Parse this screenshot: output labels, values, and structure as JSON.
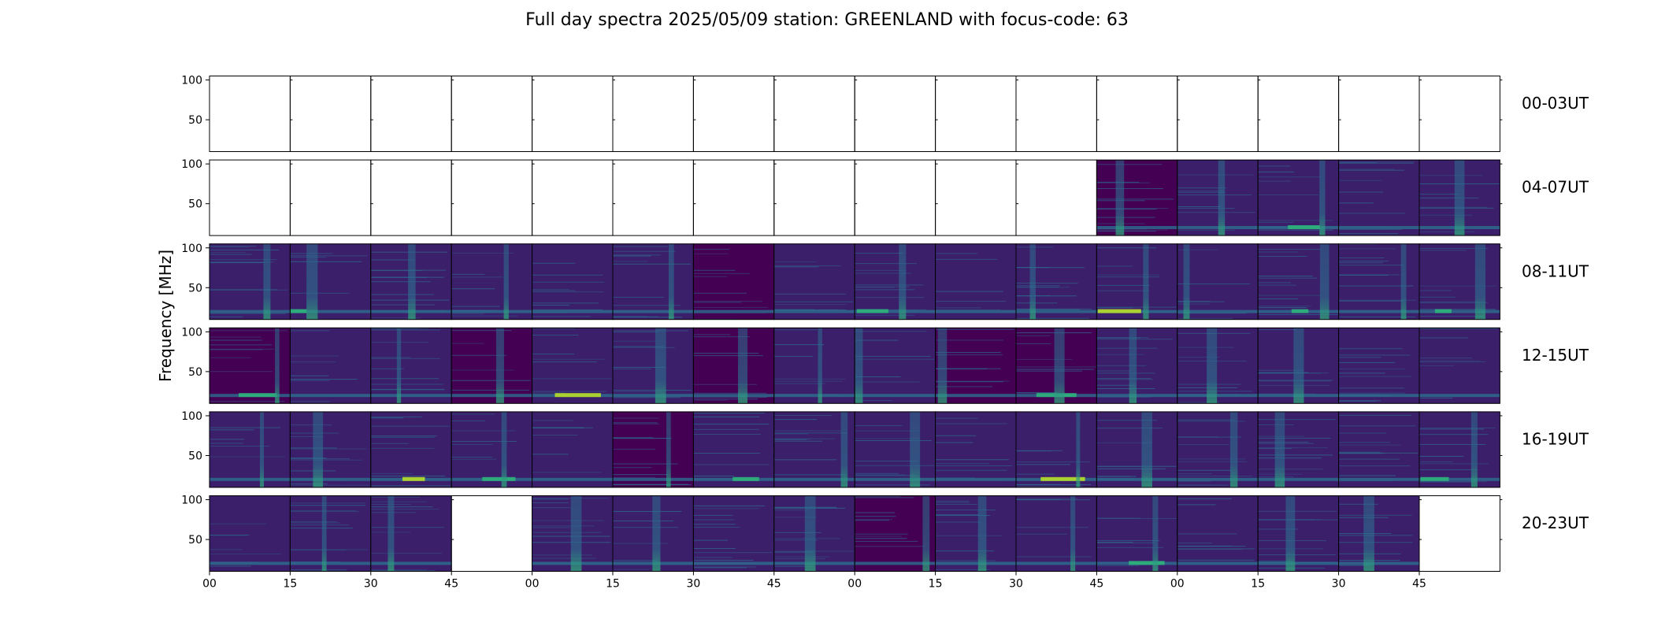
{
  "chart_data": {
    "type": "heatmap",
    "title": "Full day spectra 2025/05/09 station: GREENLAND with focus-code: 63",
    "ylabel": "Frequency [MHz]",
    "ylim": [
      10,
      105
    ],
    "yticks": [
      50,
      100
    ],
    "colormap": "viridis",
    "row_labels": [
      "00-03UT",
      "04-07UT",
      "08-11UT",
      "12-15UT",
      "16-19UT",
      "20-23UT"
    ],
    "xtick_labels": [
      "00",
      "15",
      "30",
      "45",
      "00",
      "15",
      "30",
      "45",
      "00",
      "15",
      "30",
      "45",
      "00",
      "15",
      "30",
      "45"
    ],
    "panels_per_row": 16,
    "availability": [
      [
        0,
        0,
        0,
        0,
        0,
        0,
        0,
        0,
        0,
        0,
        0,
        0,
        0,
        0,
        0,
        0
      ],
      [
        0,
        0,
        0,
        0,
        0,
        0,
        0,
        0,
        0,
        0,
        0,
        1,
        1,
        1,
        1,
        1
      ],
      [
        1,
        1,
        1,
        1,
        1,
        1,
        1,
        1,
        1,
        1,
        1,
        1,
        1,
        1,
        1,
        1
      ],
      [
        1,
        1,
        1,
        1,
        1,
        1,
        1,
        1,
        1,
        1,
        1,
        1,
        1,
        1,
        1,
        1
      ],
      [
        1,
        1,
        1,
        1,
        1,
        1,
        1,
        1,
        1,
        1,
        1,
        1,
        1,
        1,
        1,
        1
      ],
      [
        1,
        1,
        1,
        0,
        1,
        1,
        1,
        1,
        1,
        1,
        1,
        1,
        1,
        1,
        1,
        0
      ]
    ],
    "colors": {
      "background": "#3b1f6b",
      "dark": "#440154",
      "band": "#2d6e8e",
      "burst": "#2fb47c",
      "bright": "#b8de29"
    }
  }
}
